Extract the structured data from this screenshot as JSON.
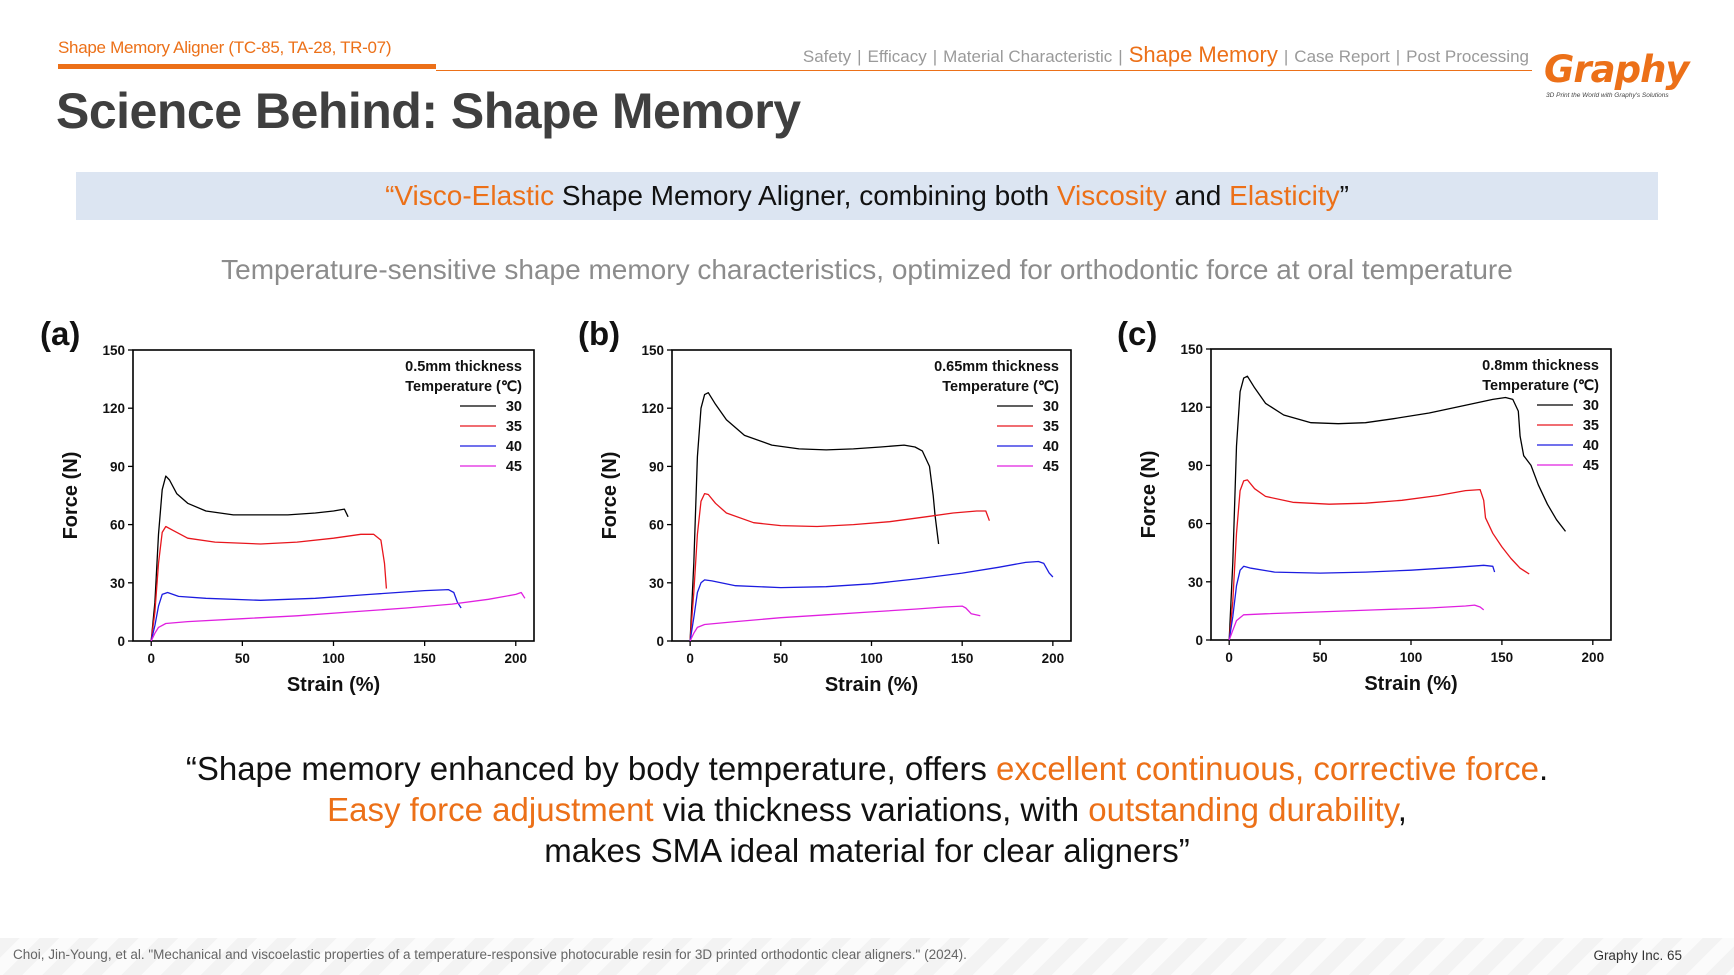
{
  "header": {
    "supertitle": "Shape Memory Aligner (TC-85, TA-28, TR-07)",
    "nav": [
      "Safety",
      "Efficacy",
      "Material Characteristic",
      "Shape Memory",
      "Case Report",
      "Post Processing"
    ],
    "nav_active": "Shape Memory",
    "nav_separator": "|",
    "logo": "Graphy",
    "logo_tagline": "3D Print the World with Graphy's Solutions"
  },
  "title": "Science Behind: Shape Memory",
  "banner": {
    "open_quote": "“",
    "orange1": "Visco-Elastic",
    "text1": " Shape Memory Aligner, combining both ",
    "orange2": "Viscosity",
    "text2": " and ",
    "orange3": "Elasticity",
    "close_quote": "”"
  },
  "subtitle": "Temperature-sensitive shape memory characteristics, optimized for orthodontic force at oral temperature",
  "quote": {
    "l1a": "“Shape memory enhanced by body temperature, offers ",
    "l1b": "excellent continuous, corrective force",
    "l1c": ".",
    "l2a": "Easy force adjustment",
    "l2b": " via thickness variations, with ",
    "l2c": "outstanding durability",
    "l2d": ",",
    "l3": "makes SMA ideal material for clear aligners”"
  },
  "footer": {
    "citation": "Choi, Jin-Young, et al. \"Mechanical and viscoelastic properties of a temperature-responsive photocurable resin for 3D printed orthodontic clear aligners.\" (2024).",
    "page": "Graphy Inc. 65"
  },
  "colors": {
    "accent": "#ec7018",
    "banner_bg": "#dce5f2",
    "series": [
      "#000000",
      "#e8161d",
      "#1c1ce0",
      "#e020e0"
    ]
  },
  "chart_data": [
    {
      "type": "line",
      "panel_label": "(a)",
      "legend_title1": "0.5mm thickness",
      "legend_title2": "Temperature (℃)",
      "xlabel": "Strain (%)",
      "ylabel": "Force (N)",
      "xlim": [
        -10,
        210
      ],
      "ylim": [
        0,
        150
      ],
      "xticks": [
        0,
        50,
        100,
        150,
        200
      ],
      "yticks": [
        0,
        30,
        60,
        90,
        120,
        150
      ],
      "series": [
        {
          "name": "30",
          "color": "#000000",
          "points": [
            [
              0,
              0
            ],
            [
              2,
              20
            ],
            [
              4,
              55
            ],
            [
              6,
              78
            ],
            [
              8,
              85
            ],
            [
              10,
              83
            ],
            [
              14,
              76
            ],
            [
              20,
              71
            ],
            [
              30,
              67
            ],
            [
              45,
              65
            ],
            [
              60,
              65
            ],
            [
              75,
              65
            ],
            [
              90,
              66
            ],
            [
              100,
              67
            ],
            [
              106,
              68
            ],
            [
              108,
              64
            ]
          ]
        },
        {
          "name": "35",
          "color": "#e8161d",
          "points": [
            [
              0,
              0
            ],
            [
              2,
              15
            ],
            [
              4,
              40
            ],
            [
              6,
              56
            ],
            [
              8,
              59
            ],
            [
              12,
              57
            ],
            [
              20,
              53
            ],
            [
              35,
              51
            ],
            [
              60,
              50
            ],
            [
              80,
              51
            ],
            [
              100,
              53
            ],
            [
              115,
              55
            ],
            [
              122,
              55
            ],
            [
              126,
              52
            ],
            [
              128,
              40
            ],
            [
              129,
              27
            ]
          ]
        },
        {
          "name": "40",
          "color": "#1c1ce0",
          "points": [
            [
              0,
              0
            ],
            [
              2,
              8
            ],
            [
              4,
              18
            ],
            [
              6,
              24
            ],
            [
              9,
              25
            ],
            [
              15,
              23
            ],
            [
              30,
              22
            ],
            [
              60,
              21
            ],
            [
              90,
              22
            ],
            [
              120,
              24
            ],
            [
              150,
              26
            ],
            [
              163,
              26.5
            ],
            [
              166,
              25
            ],
            [
              168,
              20
            ],
            [
              170,
              17
            ]
          ]
        },
        {
          "name": "45",
          "color": "#e020e0",
          "points": [
            [
              0,
              0
            ],
            [
              2,
              4
            ],
            [
              4,
              7
            ],
            [
              8,
              9
            ],
            [
              20,
              10
            ],
            [
              50,
              11.5
            ],
            [
              80,
              13
            ],
            [
              110,
              15
            ],
            [
              140,
              17
            ],
            [
              165,
              19
            ],
            [
              185,
              21.5
            ],
            [
              200,
              24
            ],
            [
              203,
              25
            ],
            [
              205,
              22
            ]
          ]
        }
      ]
    },
    {
      "type": "line",
      "panel_label": "(b)",
      "legend_title1": "0.65mm thickness",
      "legend_title2": "Temperature (℃)",
      "xlabel": "Strain (%)",
      "ylabel": "Force (N)",
      "xlim": [
        -10,
        210
      ],
      "ylim": [
        0,
        150
      ],
      "xticks": [
        0,
        50,
        100,
        150,
        200
      ],
      "yticks": [
        0,
        30,
        60,
        90,
        120,
        150
      ],
      "series": [
        {
          "name": "30",
          "color": "#000000",
          "points": [
            [
              0,
              0
            ],
            [
              2,
              40
            ],
            [
              4,
              95
            ],
            [
              6,
              120
            ],
            [
              8,
              127
            ],
            [
              10,
              128
            ],
            [
              14,
              122
            ],
            [
              20,
              114
            ],
            [
              30,
              106
            ],
            [
              45,
              101
            ],
            [
              60,
              99
            ],
            [
              75,
              98.5
            ],
            [
              90,
              99
            ],
            [
              105,
              100
            ],
            [
              118,
              101
            ],
            [
              124,
              100
            ],
            [
              128,
              98
            ],
            [
              132,
              90
            ],
            [
              134,
              75
            ],
            [
              135,
              65
            ],
            [
              137,
              50
            ]
          ]
        },
        {
          "name": "35",
          "color": "#e8161d",
          "points": [
            [
              0,
              0
            ],
            [
              2,
              25
            ],
            [
              4,
              55
            ],
            [
              6,
              72
            ],
            [
              8,
              76
            ],
            [
              10,
              75.5
            ],
            [
              14,
              71
            ],
            [
              20,
              66
            ],
            [
              35,
              61
            ],
            [
              50,
              59.5
            ],
            [
              70,
              59
            ],
            [
              90,
              60
            ],
            [
              110,
              61.5
            ],
            [
              130,
              64
            ],
            [
              145,
              66
            ],
            [
              158,
              67
            ],
            [
              163,
              67
            ],
            [
              165,
              62
            ]
          ]
        },
        {
          "name": "40",
          "color": "#1c1ce0",
          "points": [
            [
              0,
              0
            ],
            [
              2,
              12
            ],
            [
              4,
              25
            ],
            [
              6,
              30
            ],
            [
              8,
              31.5
            ],
            [
              12,
              31
            ],
            [
              25,
              28.5
            ],
            [
              50,
              27.5
            ],
            [
              75,
              28
            ],
            [
              100,
              29.5
            ],
            [
              125,
              32
            ],
            [
              150,
              35
            ],
            [
              170,
              38
            ],
            [
              185,
              40.5
            ],
            [
              192,
              41
            ],
            [
              195,
              40
            ],
            [
              198,
              35
            ],
            [
              200,
              33
            ]
          ]
        },
        {
          "name": "45",
          "color": "#e020e0",
          "points": [
            [
              0,
              0
            ],
            [
              2,
              4
            ],
            [
              4,
              7
            ],
            [
              8,
              8.5
            ],
            [
              25,
              10
            ],
            [
              50,
              12
            ],
            [
              75,
              13.5
            ],
            [
              100,
              15
            ],
            [
              125,
              16.5
            ],
            [
              140,
              17.5
            ],
            [
              150,
              18
            ],
            [
              152,
              17
            ],
            [
              155,
              14
            ],
            [
              160,
              13
            ]
          ]
        }
      ]
    },
    {
      "type": "line",
      "panel_label": "(c)",
      "legend_title1": "0.8mm thickness",
      "legend_title2": "Temperature (℃)",
      "xlabel": "Strain (%)",
      "ylabel": "Force (N)",
      "xlim": [
        -10,
        210
      ],
      "ylim": [
        0,
        150
      ],
      "xticks": [
        0,
        50,
        100,
        150,
        200
      ],
      "yticks": [
        0,
        30,
        60,
        90,
        120,
        150
      ],
      "series": [
        {
          "name": "30",
          "color": "#000000",
          "points": [
            [
              0,
              0
            ],
            [
              2,
              40
            ],
            [
              4,
              100
            ],
            [
              6,
              128
            ],
            [
              8,
              135
            ],
            [
              10,
              136
            ],
            [
              14,
              130
            ],
            [
              20,
              122
            ],
            [
              30,
              116
            ],
            [
              45,
              112
            ],
            [
              60,
              111.5
            ],
            [
              75,
              112
            ],
            [
              90,
              114
            ],
            [
              110,
              117
            ],
            [
              130,
              121
            ],
            [
              145,
              124
            ],
            [
              152,
              125
            ],
            [
              156,
              124
            ],
            [
              159,
              118
            ],
            [
              160,
              105
            ],
            [
              162,
              95
            ],
            [
              166,
              90
            ],
            [
              170,
              80
            ],
            [
              175,
              70
            ],
            [
              180,
              62
            ],
            [
              185,
              56
            ]
          ]
        },
        {
          "name": "35",
          "color": "#e8161d",
          "points": [
            [
              0,
              0
            ],
            [
              2,
              20
            ],
            [
              4,
              55
            ],
            [
              6,
              77
            ],
            [
              8,
              82
            ],
            [
              10,
              82.5
            ],
            [
              14,
              78
            ],
            [
              20,
              74
            ],
            [
              35,
              71
            ],
            [
              55,
              70
            ],
            [
              75,
              70.5
            ],
            [
              95,
              72
            ],
            [
              115,
              74.5
            ],
            [
              130,
              77
            ],
            [
              138,
              77.5
            ],
            [
              140,
              72
            ],
            [
              141,
              63
            ],
            [
              145,
              55
            ],
            [
              150,
              48
            ],
            [
              155,
              42
            ],
            [
              160,
              37
            ],
            [
              165,
              34
            ]
          ]
        },
        {
          "name": "40",
          "color": "#1c1ce0",
          "points": [
            [
              0,
              0
            ],
            [
              2,
              12
            ],
            [
              4,
              28
            ],
            [
              6,
              36
            ],
            [
              8,
              38
            ],
            [
              12,
              37
            ],
            [
              25,
              35
            ],
            [
              50,
              34.5
            ],
            [
              75,
              35
            ],
            [
              100,
              36
            ],
            [
              125,
              37.5
            ],
            [
              140,
              38.5
            ],
            [
              145,
              38
            ],
            [
              146,
              35
            ]
          ]
        },
        {
          "name": "45",
          "color": "#e020e0",
          "points": [
            [
              0,
              0
            ],
            [
              2,
              5
            ],
            [
              4,
              10
            ],
            [
              8,
              13
            ],
            [
              20,
              13.5
            ],
            [
              50,
              14.5
            ],
            [
              80,
              15.5
            ],
            [
              110,
              16.5
            ],
            [
              130,
              17.5
            ],
            [
              135,
              18
            ],
            [
              138,
              17
            ],
            [
              140,
              15.5
            ]
          ]
        }
      ]
    }
  ]
}
